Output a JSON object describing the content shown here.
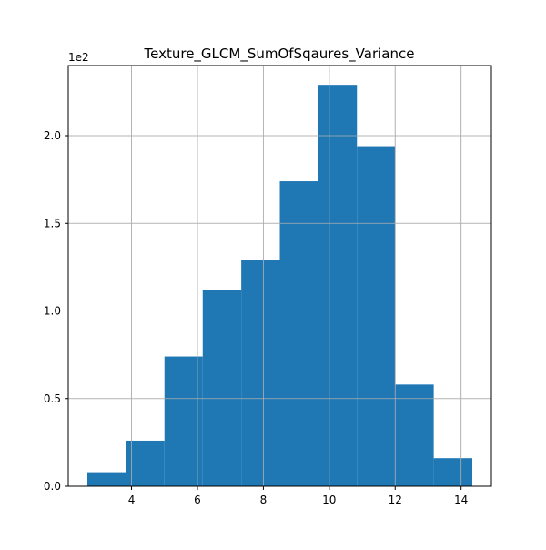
{
  "chart_data": {
    "type": "histogram",
    "title": "Texture_GLCM_SumOfSqaures_Variance",
    "xlabel": "",
    "ylabel": "",
    "y_offset_label": "1e2",
    "bin_edges": [
      2.66,
      3.83,
      5.0,
      6.16,
      7.33,
      8.5,
      9.67,
      10.84,
      12.0,
      13.17,
      14.34
    ],
    "counts": [
      8,
      26,
      74,
      112,
      129,
      174,
      229,
      194,
      58,
      16
    ],
    "xlim": [
      2.08,
      14.92
    ],
    "ylim": [
      0,
      240
    ],
    "x_ticks": [
      {
        "value": 4,
        "label": "4"
      },
      {
        "value": 6,
        "label": "6"
      },
      {
        "value": 8,
        "label": "8"
      },
      {
        "value": 10,
        "label": "10"
      },
      {
        "value": 12,
        "label": "12"
      },
      {
        "value": 14,
        "label": "14"
      }
    ],
    "y_ticks": [
      {
        "value": 0,
        "label": "0.0"
      },
      {
        "value": 50,
        "label": "0.5"
      },
      {
        "value": 100,
        "label": "1.0"
      },
      {
        "value": 150,
        "label": "1.5"
      },
      {
        "value": 200,
        "label": "2.0"
      }
    ],
    "grid": true,
    "colors": {
      "bar": "#1f77b4",
      "grid": "#b0b0b0",
      "axis": "#000000"
    }
  }
}
